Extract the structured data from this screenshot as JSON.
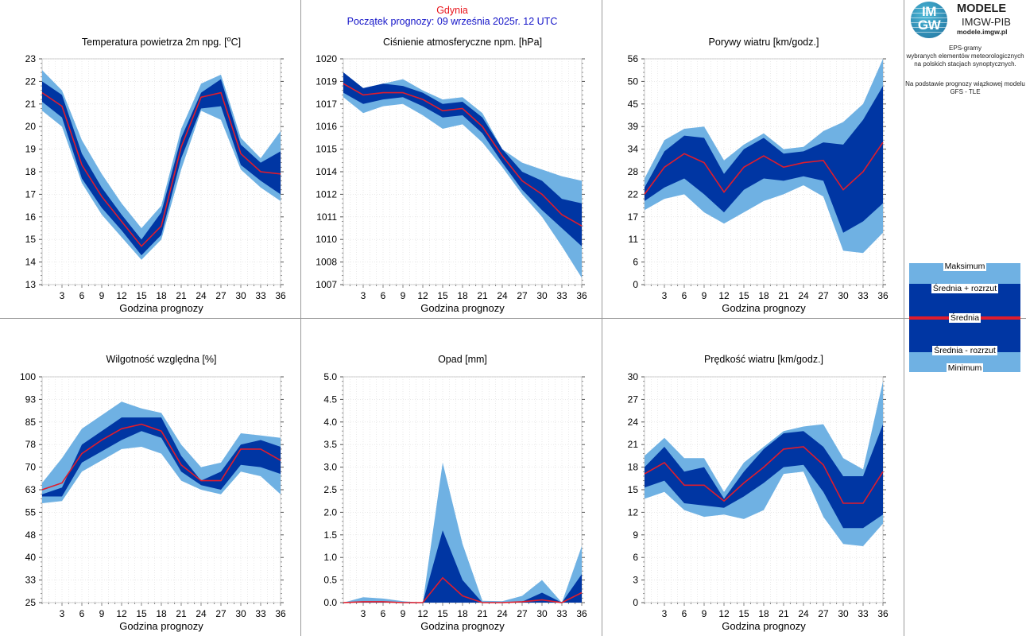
{
  "header": {
    "city": "Gdynia",
    "start": "Początek prognozy: 09 września 2025r. 12 UTC"
  },
  "brand": {
    "logo_text_top": "IM",
    "logo_text_bottom": "GW",
    "title": "MODELE",
    "subtitle": "IMGW-PIB",
    "url": "modele.imgw.pl"
  },
  "info": {
    "lines1": [
      "EPS-gramy",
      "wybranych elementów meteorologicznych",
      "na polskich stacjach  synoptycznych."
    ],
    "lines2": [
      "Na podstawie prognozy wiązkowej modelu",
      "GFS - TLE"
    ]
  },
  "legend": {
    "max": "Maksimum",
    "mean_plus": "Średnia + rozrzut",
    "mean": "Średnia",
    "mean_minus": "Średnia - rozrzut",
    "min": "Minimum"
  },
  "colors": {
    "outer": "#6fb1e3",
    "inner": "#0036a3",
    "mean": "#e01c2c",
    "city": "#e8141b",
    "start": "#1414c8"
  },
  "chart_data": [
    {
      "id": "temp",
      "type": "area",
      "title": "Temperatura powietrza 2m npg. [",
      "title_sup": "o",
      "title_after": "C]",
      "xlabel": "Godzina prognozy",
      "x": [
        0,
        3,
        6,
        9,
        12,
        15,
        18,
        21,
        24,
        27,
        30,
        33,
        36
      ],
      "xlim": [
        0,
        36
      ],
      "xticks": [
        3,
        6,
        9,
        12,
        15,
        18,
        21,
        24,
        27,
        30,
        33,
        36
      ],
      "ylim": [
        13,
        23
      ],
      "yticks": [
        13,
        14,
        15,
        16,
        17,
        18,
        19,
        20,
        21,
        22,
        23
      ],
      "yticklabels": [
        "13",
        "14",
        "15",
        "16",
        "17",
        "18",
        "19",
        "20",
        "21",
        "22",
        "23"
      ],
      "series": [
        {
          "name": "Maksimum",
          "values": [
            22.5,
            21.6,
            19.4,
            17.9,
            16.6,
            15.5,
            16.5,
            19.9,
            21.9,
            22.3,
            19.5,
            18.6,
            19.8
          ]
        },
        {
          "name": "Średnia + rozrzut",
          "values": [
            22.0,
            21.4,
            18.8,
            17.3,
            16.1,
            15.0,
            16.2,
            19.5,
            21.5,
            22.1,
            19.2,
            18.4,
            18.9
          ]
        },
        {
          "name": "Średnia",
          "values": [
            21.5,
            20.9,
            18.3,
            16.9,
            15.8,
            14.7,
            15.6,
            19.1,
            21.3,
            21.5,
            18.8,
            18.0,
            17.9
          ]
        },
        {
          "name": "Średnia - rozrzut",
          "values": [
            21.1,
            20.4,
            17.7,
            16.4,
            15.4,
            14.3,
            15.2,
            18.6,
            20.8,
            20.9,
            18.3,
            17.6,
            17.0
          ]
        },
        {
          "name": "Minimum",
          "values": [
            20.7,
            20.0,
            17.5,
            16.1,
            15.1,
            14.1,
            15.0,
            18.1,
            20.7,
            20.3,
            18.1,
            17.3,
            16.7
          ]
        }
      ]
    },
    {
      "id": "pressure",
      "type": "area",
      "title": "Ciśnienie atmosferyczne npm. [hPa]",
      "xlabel": "Godzina prognozy",
      "x": [
        0,
        3,
        6,
        9,
        12,
        15,
        18,
        21,
        24,
        27,
        30,
        33,
        36
      ],
      "xlim": [
        0,
        36
      ],
      "xticks": [
        3,
        6,
        9,
        12,
        15,
        18,
        21,
        24,
        27,
        30,
        33,
        36
      ],
      "ylim": [
        0,
        10
      ],
      "yticks": [
        0,
        1,
        2,
        3,
        4,
        5,
        6,
        7,
        8,
        9,
        10
      ],
      "yticklabels": [
        "1007",
        "1008",
        "1010",
        "1011",
        "1012",
        "1014",
        "1015",
        "1016",
        "1017",
        "1019",
        "1020"
      ],
      "series": [
        {
          "name": "Maksimum",
          "values": [
            9.4,
            8.7,
            8.9,
            9.1,
            8.6,
            8.2,
            8.3,
            7.6,
            6.0,
            5.4,
            5.1,
            4.8,
            4.6
          ]
        },
        {
          "name": "Średnia + rozrzut",
          "values": [
            9.4,
            8.7,
            8.9,
            8.8,
            8.5,
            8.0,
            8.1,
            7.4,
            6.0,
            5.0,
            4.6,
            3.8,
            3.6
          ]
        },
        {
          "name": "Średnia",
          "values": [
            8.9,
            8.4,
            8.5,
            8.5,
            8.2,
            7.7,
            7.8,
            7.0,
            5.7,
            4.6,
            4.0,
            3.1,
            2.6
          ]
        },
        {
          "name": "Średnia - rozrzut",
          "values": [
            8.5,
            8.0,
            8.2,
            8.3,
            7.9,
            7.4,
            7.5,
            6.7,
            5.4,
            4.2,
            3.3,
            2.5,
            1.7
          ]
        },
        {
          "name": "Minimum",
          "values": [
            8.3,
            7.6,
            7.9,
            8.0,
            7.5,
            6.9,
            7.1,
            6.3,
            5.2,
            4.0,
            3.0,
            1.7,
            0.3
          ]
        }
      ]
    },
    {
      "id": "gusts",
      "type": "area",
      "title": "Porywy wiatru [km/godz.]",
      "xlabel": "Godzina prognozy",
      "x": [
        0,
        3,
        6,
        9,
        12,
        15,
        18,
        21,
        24,
        27,
        30,
        33,
        36
      ],
      "xlim": [
        0,
        36
      ],
      "xticks": [
        3,
        6,
        9,
        12,
        15,
        18,
        21,
        24,
        27,
        30,
        33,
        36
      ],
      "ylim": [
        0,
        10
      ],
      "yticks": [
        0,
        1,
        2,
        3,
        4,
        5,
        6,
        7,
        8,
        9,
        10
      ],
      "yticklabels": [
        "0",
        "6",
        "11",
        "17",
        "22",
        "28",
        "34",
        "39",
        "45",
        "50",
        "56"
      ],
      "series": [
        {
          "name": "Maksimum",
          "values": [
            4.7,
            6.4,
            6.9,
            7.0,
            5.5,
            6.2,
            6.7,
            6.0,
            6.1,
            6.8,
            7.2,
            8.0,
            10.0
          ]
        },
        {
          "name": "Średnia + rozrzut",
          "values": [
            4.3,
            5.9,
            6.6,
            6.5,
            4.9,
            6.0,
            6.5,
            5.8,
            5.9,
            6.3,
            6.2,
            7.3,
            8.8
          ]
        },
        {
          "name": "Średnia",
          "values": [
            4.0,
            5.2,
            5.8,
            5.4,
            4.1,
            5.2,
            5.7,
            5.2,
            5.4,
            5.5,
            4.2,
            5.0,
            6.3
          ]
        },
        {
          "name": "Średnia - rozrzut",
          "values": [
            3.7,
            4.3,
            4.7,
            4.0,
            3.2,
            4.2,
            4.7,
            4.6,
            4.8,
            4.6,
            2.3,
            2.8,
            3.6
          ]
        },
        {
          "name": "Minimum",
          "values": [
            3.3,
            3.8,
            4.0,
            3.2,
            2.7,
            3.2,
            3.7,
            4.0,
            4.4,
            3.9,
            1.5,
            1.4,
            2.3
          ]
        }
      ]
    },
    {
      "id": "humidity",
      "type": "area",
      "title": "Wilgotność względna [%]",
      "xlabel": "Godzina prognozy",
      "x": [
        0,
        3,
        6,
        9,
        12,
        15,
        18,
        21,
        24,
        27,
        30,
        33,
        36
      ],
      "xlim": [
        0,
        36
      ],
      "xticks": [
        3,
        6,
        9,
        12,
        15,
        18,
        21,
        24,
        27,
        30,
        33,
        36
      ],
      "ylim": [
        0,
        10
      ],
      "yticks": [
        0,
        1,
        2,
        3,
        4,
        5,
        6,
        7,
        8,
        9,
        10
      ],
      "yticklabels": [
        "25",
        "33",
        "40",
        "48",
        "55",
        "63",
        "70",
        "78",
        "85",
        "93",
        "100"
      ],
      "series": [
        {
          "name": "Maksimum",
          "values": [
            5.3,
            6.4,
            7.7,
            8.3,
            8.9,
            8.6,
            8.4,
            7.0,
            6.0,
            6.2,
            7.5,
            7.4,
            7.3
          ]
        },
        {
          "name": "Średnia + rozrzut",
          "values": [
            4.8,
            5.1,
            7.0,
            7.6,
            8.2,
            8.2,
            8.2,
            6.5,
            5.4,
            5.8,
            7.0,
            7.2,
            6.9
          ]
        },
        {
          "name": "Średnia",
          "values": [
            5.0,
            5.3,
            6.6,
            7.2,
            7.7,
            7.9,
            7.6,
            6.1,
            5.4,
            5.4,
            6.8,
            6.8,
            6.3
          ]
        },
        {
          "name": "Średnia - rozrzut",
          "values": [
            4.7,
            4.7,
            6.2,
            6.7,
            7.2,
            7.6,
            7.3,
            5.8,
            5.2,
            5.0,
            6.1,
            6.0,
            5.7
          ]
        },
        {
          "name": "Minimum",
          "values": [
            4.4,
            4.5,
            5.8,
            6.3,
            6.8,
            6.9,
            6.6,
            5.4,
            5.0,
            4.8,
            5.8,
            5.6,
            4.8
          ]
        }
      ]
    },
    {
      "id": "precip",
      "type": "area",
      "title": "Opad [mm]",
      "xlabel": "Godzina prognozy",
      "x": [
        0,
        3,
        6,
        9,
        12,
        15,
        18,
        21,
        24,
        27,
        30,
        33,
        36
      ],
      "xlim": [
        0,
        36
      ],
      "xticks": [
        3,
        6,
        9,
        12,
        15,
        18,
        21,
        24,
        27,
        30,
        33,
        36
      ],
      "ylim": [
        0,
        5
      ],
      "yticks": [
        0,
        0.5,
        1,
        1.5,
        2,
        2.5,
        3,
        3.5,
        4,
        4.5,
        5
      ],
      "yticklabels": [
        "0.0",
        "0.5",
        "1.0",
        "1.5",
        "2.0",
        "2.5",
        "3.0",
        "3.5",
        "4.0",
        "4.5",
        "5.0"
      ],
      "series": [
        {
          "name": "Maksimum",
          "values": [
            0.0,
            0.12,
            0.09,
            0.03,
            0.0,
            3.1,
            1.3,
            0.04,
            0.03,
            0.15,
            0.5,
            0.0,
            1.25
          ]
        },
        {
          "name": "Średnia + rozrzut",
          "values": [
            0.0,
            0.02,
            0.02,
            0.0,
            0.0,
            1.6,
            0.5,
            0.0,
            0.0,
            0.02,
            0.22,
            0.0,
            0.63
          ]
        },
        {
          "name": "Średnia",
          "values": [
            0.0,
            0.02,
            0.02,
            0.0,
            0.0,
            0.55,
            0.15,
            0.0,
            0.0,
            0.02,
            0.06,
            0.0,
            0.22
          ]
        },
        {
          "name": "Średnia - rozrzut",
          "values": [
            0.0,
            0.0,
            0.0,
            0.0,
            0.0,
            0.0,
            0.0,
            0.0,
            0.0,
            0.0,
            0.0,
            0.0,
            0.0
          ]
        },
        {
          "name": "Minimum",
          "values": [
            0.0,
            0.0,
            0.0,
            0.0,
            0.0,
            0.0,
            0.0,
            0.0,
            0.0,
            0.0,
            0.0,
            0.0,
            0.0
          ]
        }
      ]
    },
    {
      "id": "wind",
      "type": "area",
      "title": "Prędkość wiatru [km/godz.]",
      "xlabel": "Godzina prognozy",
      "x": [
        0,
        3,
        6,
        9,
        12,
        15,
        18,
        21,
        24,
        27,
        30,
        33,
        36
      ],
      "xlim": [
        0,
        36
      ],
      "xticks": [
        3,
        6,
        9,
        12,
        15,
        18,
        21,
        24,
        27,
        30,
        33,
        36
      ],
      "ylim": [
        0,
        10
      ],
      "yticks": [
        0,
        1,
        2,
        3,
        4,
        5,
        6,
        7,
        8,
        9,
        10
      ],
      "yticklabels": [
        "0",
        "3",
        "6",
        "9",
        "12",
        "15",
        "18",
        "21",
        "24",
        "27",
        "30"
      ],
      "series": [
        {
          "name": "Maksimum",
          "values": [
            6.5,
            7.3,
            6.4,
            6.4,
            4.9,
            6.2,
            6.9,
            7.6,
            7.8,
            7.9,
            6.4,
            5.9,
            9.8
          ]
        },
        {
          "name": "Średnia + rozrzut",
          "values": [
            6.0,
            6.9,
            5.8,
            6.0,
            4.6,
            5.8,
            6.8,
            7.5,
            7.6,
            6.9,
            5.6,
            5.6,
            7.9
          ]
        },
        {
          "name": "Średnia",
          "values": [
            5.7,
            6.2,
            5.2,
            5.2,
            4.5,
            5.3,
            6.0,
            6.8,
            6.9,
            6.1,
            4.4,
            4.4,
            5.8
          ]
        },
        {
          "name": "Średnia - rozrzut",
          "values": [
            5.1,
            5.4,
            4.4,
            4.3,
            4.2,
            4.7,
            5.3,
            6.0,
            6.1,
            4.9,
            3.3,
            3.3,
            3.9
          ]
        },
        {
          "name": "Minimum",
          "values": [
            4.6,
            4.9,
            4.1,
            3.8,
            3.9,
            3.7,
            4.1,
            5.7,
            5.8,
            3.8,
            2.6,
            2.5,
            3.5
          ]
        }
      ]
    }
  ]
}
